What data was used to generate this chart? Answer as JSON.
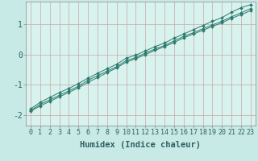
{
  "title": "",
  "xlabel": "Humidex (Indice chaleur)",
  "ylabel": "",
  "background_color": "#c8eae6",
  "plot_bg_color": "#d8f2ee",
  "grid_color": "#c8a8a8",
  "line_color": "#2d7a6e",
  "marker_color": "#2d7a6e",
  "xlim": [
    -0.5,
    23.5
  ],
  "ylim": [
    -2.35,
    1.75
  ],
  "xticks": [
    0,
    1,
    2,
    3,
    4,
    5,
    6,
    7,
    8,
    9,
    10,
    11,
    12,
    13,
    14,
    15,
    16,
    17,
    18,
    19,
    20,
    21,
    22,
    23
  ],
  "yticks": [
    -2,
    -1,
    0,
    1
  ],
  "lines": [
    [
      0,
      1,
      2,
      3,
      4,
      5,
      6,
      7,
      8,
      9,
      10,
      11,
      12,
      13,
      14,
      15,
      16,
      17,
      18,
      19,
      20,
      21,
      22,
      23
    ],
    [
      -1.85,
      -1.65,
      -1.5,
      -1.35,
      -1.2,
      -1.05,
      -0.85,
      -0.7,
      -0.55,
      -0.4,
      -0.2,
      -0.1,
      0.05,
      0.18,
      0.3,
      0.45,
      0.6,
      0.72,
      0.85,
      0.98,
      1.1,
      1.25,
      1.38,
      1.52
    ]
  ],
  "lines2": [
    [
      0,
      1,
      2,
      3,
      4,
      5,
      6,
      7,
      8,
      9,
      10,
      11,
      12,
      13,
      14,
      15,
      16,
      17,
      18,
      19,
      20,
      21,
      22,
      23
    ],
    [
      -1.8,
      -1.58,
      -1.42,
      -1.26,
      -1.12,
      -0.96,
      -0.78,
      -0.62,
      -0.47,
      -0.32,
      -0.12,
      -0.02,
      0.12,
      0.26,
      0.38,
      0.54,
      0.68,
      0.82,
      0.96,
      1.1,
      1.22,
      1.4,
      1.55,
      1.65
    ]
  ],
  "lines3": [
    [
      0,
      1,
      2,
      3,
      4,
      5,
      6,
      7,
      8,
      9,
      10,
      11,
      12,
      13,
      14,
      15,
      16,
      17,
      18,
      19,
      20,
      21,
      22,
      23
    ],
    [
      -1.88,
      -1.7,
      -1.55,
      -1.4,
      -1.25,
      -1.1,
      -0.92,
      -0.76,
      -0.6,
      -0.44,
      -0.25,
      -0.14,
      0.0,
      0.14,
      0.26,
      0.4,
      0.55,
      0.68,
      0.8,
      0.93,
      1.05,
      1.2,
      1.32,
      1.45
    ]
  ],
  "font_color": "#2d6060",
  "tick_fontsize": 6,
  "xlabel_fontsize": 7.5,
  "spine_color": "#888888"
}
